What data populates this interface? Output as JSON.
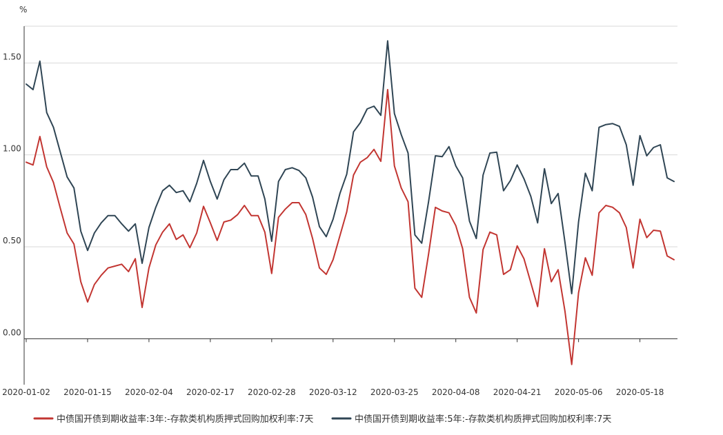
{
  "chart_data": {
    "type": "line",
    "title": "",
    "xlabel": "",
    "ylabel": "%",
    "ylim": [
      -0.25,
      1.7
    ],
    "yticks": [
      0.0,
      0.5,
      1.0,
      1.5
    ],
    "ytick_labels": [
      "0.00",
      "0.50",
      "1.00",
      "1.50"
    ],
    "grid": true,
    "legend_position": "bottom",
    "x_tick_labels": [
      "2020-01-02",
      "2020-01-15",
      "2020-02-04",
      "2020-02-17",
      "2020-02-28",
      "2020-03-12",
      "2020-03-25",
      "2020-04-08",
      "2020-04-21",
      "2020-05-06",
      "2020-05-18"
    ],
    "x_tick_label_indices": [
      0,
      9,
      18,
      27,
      36,
      45,
      54,
      63,
      72,
      81,
      90
    ],
    "series": [
      {
        "name": "中债国开债到期收益率:3年:-存款类机构质押式回购加权利率:7天",
        "color": "#c23531",
        "values": [
          0.96,
          0.945,
          1.1,
          0.935,
          0.85,
          0.71,
          0.575,
          0.515,
          0.31,
          0.2,
          0.295,
          0.345,
          0.385,
          0.395,
          0.405,
          0.365,
          0.435,
          0.17,
          0.385,
          0.51,
          0.58,
          0.625,
          0.54,
          0.565,
          0.495,
          0.575,
          0.72,
          0.63,
          0.535,
          0.635,
          0.645,
          0.675,
          0.725,
          0.67,
          0.67,
          0.58,
          0.355,
          0.66,
          0.705,
          0.74,
          0.74,
          0.675,
          0.545,
          0.385,
          0.35,
          0.43,
          0.56,
          0.69,
          0.89,
          0.96,
          0.985,
          1.03,
          0.965,
          1.355,
          0.94,
          0.82,
          0.745,
          0.275,
          0.225,
          0.46,
          0.715,
          0.695,
          0.685,
          0.615,
          0.49,
          0.225,
          0.14,
          0.485,
          0.58,
          0.565,
          0.35,
          0.375,
          0.505,
          0.435,
          0.305,
          0.175,
          0.49,
          0.31,
          0.375,
          0.15,
          -0.14,
          0.25,
          0.44,
          0.345,
          0.685,
          0.725,
          0.715,
          0.685,
          0.605,
          0.385,
          0.65,
          0.55,
          0.59,
          0.585,
          0.45,
          0.43
        ]
      },
      {
        "name": "中债国开债到期收益率:5年:-存款类机构质押式回购加权利率:7天",
        "color": "#2f4554",
        "values": [
          1.385,
          1.355,
          1.51,
          1.23,
          1.15,
          1.015,
          0.88,
          0.82,
          0.585,
          0.48,
          0.575,
          0.63,
          0.67,
          0.67,
          0.625,
          0.585,
          0.625,
          0.41,
          0.605,
          0.715,
          0.805,
          0.835,
          0.795,
          0.805,
          0.745,
          0.845,
          0.97,
          0.855,
          0.76,
          0.865,
          0.92,
          0.92,
          0.955,
          0.885,
          0.885,
          0.76,
          0.53,
          0.855,
          0.92,
          0.93,
          0.915,
          0.875,
          0.77,
          0.61,
          0.555,
          0.65,
          0.79,
          0.895,
          1.125,
          1.175,
          1.25,
          1.265,
          1.215,
          1.62,
          1.225,
          1.11,
          1.01,
          0.565,
          0.52,
          0.745,
          0.995,
          0.99,
          1.045,
          0.94,
          0.875,
          0.64,
          0.545,
          0.89,
          1.01,
          1.015,
          0.805,
          0.86,
          0.945,
          0.87,
          0.775,
          0.63,
          0.925,
          0.735,
          0.79,
          0.525,
          0.245,
          0.635,
          0.9,
          0.805,
          1.15,
          1.165,
          1.17,
          1.155,
          1.055,
          0.835,
          1.105,
          0.995,
          1.04,
          1.055,
          0.875,
          0.855
        ]
      }
    ]
  }
}
